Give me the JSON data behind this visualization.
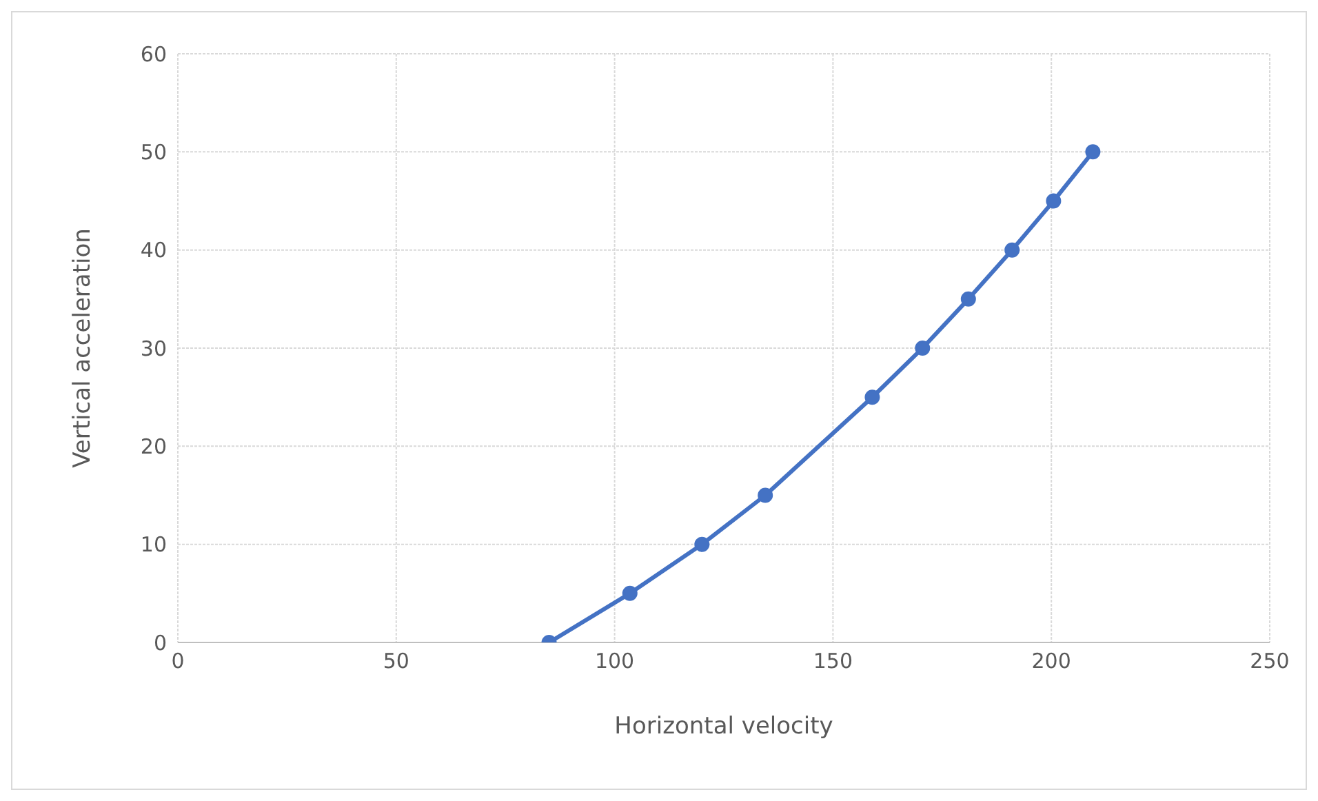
{
  "chart_data": {
    "type": "line",
    "xlabel": "Horizontal velocity",
    "ylabel": "Vertical acceleration",
    "x": [
      85,
      103.5,
      120,
      134.5,
      159,
      170.5,
      181,
      191,
      200.5,
      209.5
    ],
    "series": [
      {
        "color": "#4472c4",
        "values": [
          0,
          5,
          10,
          15,
          25,
          30,
          35,
          40,
          45,
          50
        ]
      }
    ],
    "xlim": [
      0,
      250
    ],
    "xticks": [
      0,
      50,
      100,
      150,
      200,
      250
    ],
    "ylim": [
      0,
      60
    ],
    "yticks": [
      0,
      10,
      20,
      30,
      40,
      50,
      60
    ],
    "grid": true,
    "marker": "circle",
    "line_style": "solid",
    "legend": false
  }
}
